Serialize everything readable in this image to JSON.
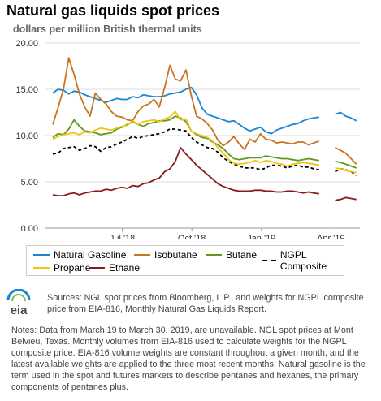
{
  "header": {
    "title": "Natural gas liquids spot prices",
    "subtitle": "dollars per million British thermal units"
  },
  "chart_data": {
    "type": "line",
    "title": "Natural gas liquids spot prices",
    "ylabel": "dollars per million British thermal units",
    "xlabel": "",
    "ylim": [
      0,
      20
    ],
    "yticks": [
      "0.00",
      "5.00",
      "10.00",
      "15.00",
      "20.00"
    ],
    "x_tick_labels": [
      {
        "label": "Jul '18",
        "month": 3
      },
      {
        "label": "Oct '18",
        "month": 6
      },
      {
        "label": "Jan '19",
        "month": 9
      },
      {
        "label": "Apr '19",
        "month": 12
      }
    ],
    "x_range": [
      "Apr 2018",
      "May 2019"
    ],
    "gridlines": true,
    "legend_position": "bottom",
    "gap": "Mar 19 - Mar 30, 2019",
    "series": [
      {
        "name": "Natural Gasoline",
        "color": "#1a85d0",
        "dash": false,
        "values": [
          14.6,
          15.0,
          14.9,
          14.5,
          14.8,
          14.7,
          14.4,
          14.2,
          14.0,
          13.8,
          13.6,
          13.8,
          14.0,
          13.9,
          13.9,
          14.2,
          14.1,
          14.4,
          14.3,
          14.2,
          14.2,
          14.3,
          14.5,
          14.6,
          14.7,
          15.0,
          15.2,
          14.4,
          13.0,
          12.3,
          12.1,
          11.9,
          11.7,
          11.5,
          11.6,
          11.2,
          10.8,
          10.5,
          10.7,
          10.9,
          10.4,
          10.2,
          10.6,
          10.8,
          11.0,
          11.2,
          11.3,
          11.6,
          11.8,
          11.9,
          12.0,
          12.1,
          12.2,
          12.3,
          12.5,
          12.1,
          11.9,
          11.6
        ]
      },
      {
        "name": "Isobutane",
        "color": "#c9741e",
        "dash": false,
        "values": [
          11.2,
          13.0,
          15.0,
          18.4,
          16.6,
          14.5,
          13.1,
          12.1,
          14.6,
          13.9,
          13.4,
          12.6,
          12.1,
          12.0,
          11.7,
          11.6,
          12.6,
          13.2,
          13.4,
          13.9,
          13.1,
          15.2,
          17.6,
          16.1,
          15.9,
          17.1,
          14.3,
          12.1,
          11.8,
          11.3,
          10.6,
          9.5,
          8.9,
          9.3,
          9.9,
          9.1,
          8.5,
          9.6,
          9.3,
          10.2,
          9.6,
          9.5,
          9.2,
          9.3,
          9.2,
          9.1,
          9.3,
          9.3,
          9.0,
          9.2,
          9.4,
          9.3,
          8.9,
          8.7,
          8.4,
          8.1,
          7.5,
          6.9
        ]
      },
      {
        "name": "Butane",
        "color": "#5d9b1e",
        "dash": false,
        "values": [
          9.8,
          10.2,
          10.1,
          10.7,
          11.7,
          11.0,
          10.5,
          10.4,
          10.3,
          10.1,
          10.2,
          10.3,
          10.7,
          10.9,
          11.2,
          11.5,
          11.2,
          11.0,
          11.3,
          11.4,
          11.6,
          11.6,
          11.7,
          12.1,
          11.9,
          11.5,
          10.5,
          10.1,
          9.8,
          9.7,
          9.3,
          9.0,
          8.6,
          8.0,
          7.5,
          7.4,
          7.5,
          7.6,
          7.6,
          7.6,
          7.8,
          7.7,
          7.6,
          7.5,
          7.5,
          7.4,
          7.3,
          7.4,
          7.5,
          7.4,
          7.3,
          7.5,
          7.4,
          7.2,
          7.1,
          6.9,
          6.7,
          6.5
        ]
      },
      {
        "name": "NGPL Composite",
        "color": "#000000",
        "dash": true,
        "values": [
          8.0,
          8.1,
          8.6,
          8.7,
          8.8,
          8.4,
          8.6,
          8.9,
          8.8,
          8.3,
          8.7,
          8.8,
          9.1,
          9.3,
          9.6,
          9.9,
          9.7,
          9.9,
          10.0,
          10.1,
          10.2,
          10.4,
          10.7,
          10.7,
          10.6,
          10.5,
          9.8,
          9.3,
          9.0,
          8.7,
          8.6,
          8.2,
          7.6,
          7.2,
          6.9,
          6.7,
          6.5,
          6.5,
          6.5,
          6.3,
          6.5,
          6.8,
          6.8,
          6.7,
          6.5,
          6.7,
          6.8,
          6.6,
          6.6,
          6.4,
          6.3,
          6.4,
          6.3,
          6.1,
          6.4,
          6.3,
          6.1,
          5.7
        ]
      },
      {
        "name": "Propane",
        "color": "#f2c40f",
        "dash": false,
        "values": [
          9.6,
          9.9,
          10.1,
          10.2,
          10.3,
          10.1,
          10.4,
          10.3,
          10.6,
          10.8,
          10.7,
          10.6,
          10.8,
          11.0,
          11.1,
          11.6,
          11.2,
          11.5,
          11.6,
          11.7,
          11.5,
          11.8,
          12.0,
          12.6,
          11.7,
          11.8,
          10.5,
          10.2,
          10.0,
          9.8,
          9.4,
          8.7,
          8.1,
          7.4,
          7.0,
          6.9,
          7.0,
          7.1,
          7.3,
          7.1,
          7.3,
          7.2,
          7.0,
          6.9,
          6.7,
          6.9,
          7.0,
          7.1,
          7.0,
          6.9,
          6.8,
          6.8,
          6.7,
          6.5,
          6.4,
          6.2,
          6.1,
          6.0
        ]
      },
      {
        "name": "Ethane",
        "color": "#8b1a1a",
        "dash": false,
        "values": [
          3.6,
          3.5,
          3.5,
          3.7,
          3.8,
          3.6,
          3.8,
          3.9,
          4.0,
          4.0,
          4.2,
          4.1,
          4.3,
          4.4,
          4.3,
          4.6,
          4.5,
          4.8,
          4.9,
          5.2,
          5.4,
          6.1,
          6.4,
          7.2,
          8.7,
          8.0,
          7.4,
          6.8,
          6.3,
          5.8,
          5.3,
          4.8,
          4.5,
          4.3,
          4.1,
          4.0,
          4.0,
          4.0,
          4.1,
          4.1,
          4.0,
          4.0,
          3.9,
          3.9,
          4.0,
          4.0,
          3.9,
          3.8,
          3.9,
          3.8,
          3.7,
          3.5,
          3.3,
          3.0,
          3.1,
          3.3,
          3.2,
          3.1
        ]
      }
    ]
  },
  "legend": {
    "items": [
      {
        "label": "Natural Gasoline",
        "color": "#1a85d0"
      },
      {
        "label": "Isobutane",
        "color": "#c9741e"
      },
      {
        "label": "Butane",
        "color": "#5d9b1e"
      },
      {
        "label": "NGPL Composite",
        "color": "#000000"
      },
      {
        "label": "Propane",
        "color": "#f2c40f"
      },
      {
        "label": "Ethane",
        "color": "#8b1a1a"
      }
    ]
  },
  "footer": {
    "logo_text": "eia",
    "sources": "Sources: NGL spot prices from Bloomberg, L.P., and weights for NGPL composite price from EIA-816, Monthly Natural Gas Liquids Report.",
    "notes": "Notes: Data from March 19 to March 30, 2019, are unavailable. NGL spot prices at Mont Belvieu, Texas. Monthly volumes from EIA-816 used to calculate weights for the NGPL composite price. EIA-816 volume weights are constant throughout a given month, and the latest available weights are applied to the three most recent months. Natural gasoline is the term used in the spot and futures markets to describe pentanes and hexanes, the primary components of pentanes plus."
  }
}
